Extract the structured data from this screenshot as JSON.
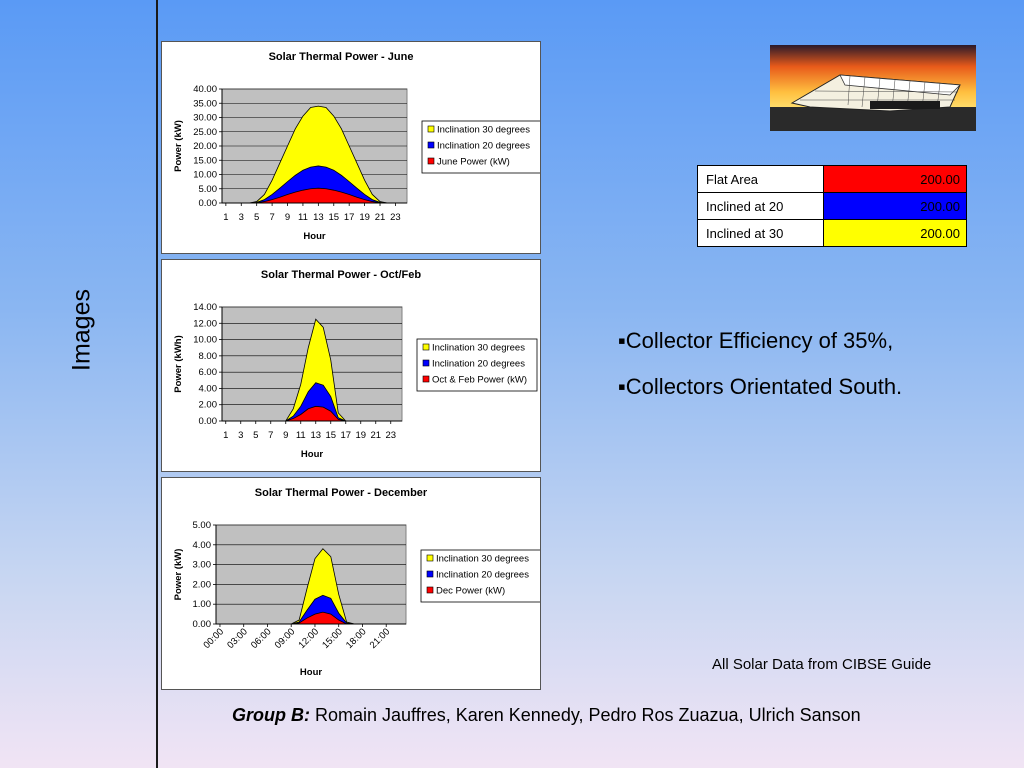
{
  "side_title": "Images",
  "chart_data": [
    {
      "type": "area",
      "title": "Solar Thermal Power - June",
      "xlabel": "Hour",
      "ylabel": "Power (kW)",
      "ylim": [
        0,
        40
      ],
      "yticks": [
        "0.00",
        "5.00",
        "10.00",
        "15.00",
        "20.00",
        "25.00",
        "30.00",
        "35.00",
        "40.00"
      ],
      "xticks": [
        "1",
        "3",
        "5",
        "7",
        "9",
        "11",
        "13",
        "15",
        "17",
        "19",
        "21",
        "23"
      ],
      "x": [
        1,
        2,
        3,
        4,
        5,
        6,
        7,
        8,
        9,
        10,
        11,
        12,
        13,
        14,
        15,
        16,
        17,
        18,
        19,
        20,
        21,
        22,
        23,
        24
      ],
      "series": [
        {
          "name": "Inclination 30 degrees",
          "color": "#ffff00",
          "values": [
            0,
            0,
            0,
            0,
            0.5,
            3,
            8,
            14,
            20,
            26,
            30.5,
            33.5,
            34,
            33.5,
            30.5,
            26,
            20,
            14,
            8,
            3,
            0.5,
            0,
            0,
            0
          ]
        },
        {
          "name": "Inclination 20 degrees",
          "color": "#0000ff",
          "values": [
            0,
            0,
            0,
            0,
            0.2,
            1.2,
            3,
            5.2,
            7.5,
            9.7,
            11.5,
            12.6,
            13,
            12.6,
            11.5,
            9.7,
            7.5,
            5.2,
            3,
            1.2,
            0.2,
            0,
            0,
            0
          ]
        },
        {
          "name": "June Power (kW)",
          "color": "#ff0000",
          "values": [
            0,
            0,
            0,
            0,
            0.1,
            0.5,
            1.2,
            2,
            3,
            3.8,
            4.5,
            5,
            5.2,
            5,
            4.5,
            3.8,
            3,
            2,
            1.2,
            0.5,
            0.1,
            0,
            0,
            0
          ]
        }
      ],
      "grid": true,
      "legend": "right"
    },
    {
      "type": "area",
      "title": "Solar Thermal Power - Oct/Feb",
      "xlabel": "Hour",
      "ylabel": "Power (kWh)",
      "ylim": [
        0,
        14
      ],
      "yticks": [
        "0.00",
        "2.00",
        "4.00",
        "6.00",
        "8.00",
        "10.00",
        "12.00",
        "14.00"
      ],
      "xticks": [
        "1",
        "3",
        "5",
        "7",
        "9",
        "11",
        "13",
        "15",
        "17",
        "19",
        "21",
        "23"
      ],
      "x": [
        1,
        2,
        3,
        4,
        5,
        6,
        7,
        8,
        9,
        10,
        11,
        12,
        13,
        14,
        15,
        16,
        17,
        18,
        19,
        20,
        21,
        22,
        23,
        24
      ],
      "series": [
        {
          "name": "Inclination 30 degrees",
          "color": "#ffff00",
          "values": [
            0,
            0,
            0,
            0,
            0,
            0,
            0,
            0,
            0,
            1.5,
            4.5,
            9,
            12.5,
            11.5,
            7.5,
            1,
            0,
            0,
            0,
            0,
            0,
            0,
            0,
            0
          ]
        },
        {
          "name": "Inclination 20 degrees",
          "color": "#0000ff",
          "values": [
            0,
            0,
            0,
            0,
            0,
            0,
            0,
            0,
            0,
            0.6,
            1.8,
            3.6,
            4.7,
            4.4,
            3,
            0.4,
            0,
            0,
            0,
            0,
            0,
            0,
            0,
            0
          ]
        },
        {
          "name": "Oct & Feb Power (kW)",
          "color": "#ff0000",
          "values": [
            0,
            0,
            0,
            0,
            0,
            0,
            0,
            0,
            0,
            0.3,
            0.8,
            1.5,
            1.8,
            1.7,
            1.2,
            0.2,
            0,
            0,
            0,
            0,
            0,
            0,
            0,
            0
          ]
        }
      ],
      "grid": true,
      "legend": "right"
    },
    {
      "type": "area",
      "title": "Solar Thermal Power - December",
      "xlabel": "Hour",
      "ylabel": "Power (kW)",
      "ylim": [
        0,
        5
      ],
      "yticks": [
        "0.00",
        "1.00",
        "2.00",
        "3.00",
        "4.00",
        "5.00"
      ],
      "xticks": [
        "00:00",
        "03:00",
        "06:00",
        "09:00",
        "12:00",
        "15:00",
        "18:00",
        "21:00"
      ],
      "x": [
        0,
        1,
        2,
        3,
        4,
        5,
        6,
        7,
        8,
        9,
        10,
        11,
        12,
        13,
        14,
        15,
        16,
        17,
        18,
        19,
        20,
        21,
        22,
        23
      ],
      "series": [
        {
          "name": "Inclination 30 degrees",
          "color": "#ffff00",
          "values": [
            0,
            0,
            0,
            0,
            0,
            0,
            0,
            0,
            0,
            0,
            0.2,
            1.8,
            3.3,
            3.8,
            3.4,
            1.5,
            0.1,
            0,
            0,
            0,
            0,
            0,
            0,
            0
          ]
        },
        {
          "name": "Inclination 20 degrees",
          "color": "#0000ff",
          "values": [
            0,
            0,
            0,
            0,
            0,
            0,
            0,
            0,
            0,
            0,
            0.1,
            0.7,
            1.25,
            1.45,
            1.3,
            0.55,
            0.05,
            0,
            0,
            0,
            0,
            0,
            0,
            0
          ]
        },
        {
          "name": "Dec Power (kW)",
          "color": "#ff0000",
          "values": [
            0,
            0,
            0,
            0,
            0,
            0,
            0,
            0,
            0,
            0,
            0.05,
            0.3,
            0.5,
            0.6,
            0.5,
            0.2,
            0,
            0,
            0,
            0,
            0,
            0,
            0,
            0
          ]
        }
      ],
      "grid": true,
      "legend": "right"
    }
  ],
  "area_table": [
    {
      "label": "Flat Area",
      "value": "200.00",
      "color": "#ff0000"
    },
    {
      "label": "Inclined at 20",
      "value": "200.00",
      "color": "#0000ff"
    },
    {
      "label": "Inclined at 30",
      "value": "200.00",
      "color": "#ffff00"
    }
  ],
  "bullets": [
    "▪Collector Efficiency of 35%,",
    "▪Collectors Orientated South."
  ],
  "source_note": "All Solar Data from CIBSE Guide",
  "footer": {
    "group_label": "Group B:",
    "members": " Romain Jauffres, Karen Kennedy, Pedro Ros Zuazua, Ulrich Sanson"
  }
}
